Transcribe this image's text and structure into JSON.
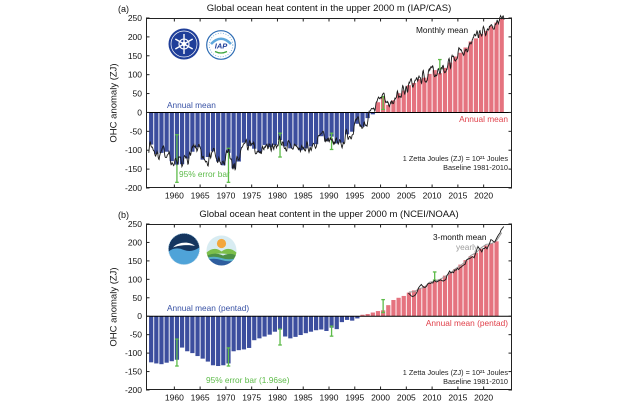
{
  "figure": {
    "background": "#ffffff",
    "description": "Two stacked bar charts of global ocean heat content anomaly (0-2000 m) from IAP/CAS and NCEI/NOAA"
  },
  "chart_data": [
    {
      "panel_label": "(a)",
      "type": "bar",
      "title": "Global ocean heat content in the upper 2000 m (IAP/CAS)",
      "ylabel": "OHC anomaly (ZJ)",
      "ylim": [
        -200,
        250
      ],
      "xlim": [
        1954.5,
        2025.5
      ],
      "y_ticks": [
        250,
        200,
        150,
        100,
        50,
        0,
        -50,
        -100,
        -150,
        -200
      ],
      "x_ticks": [
        1960,
        1965,
        1970,
        1975,
        1980,
        1985,
        1990,
        1995,
        2000,
        2005,
        2010,
        2015,
        2020
      ],
      "grid": false,
      "bar_series": {
        "name": "Annual mean",
        "years": [
          1955,
          1956,
          1957,
          1958,
          1959,
          1960,
          1961,
          1962,
          1963,
          1964,
          1965,
          1966,
          1967,
          1968,
          1969,
          1970,
          1971,
          1972,
          1973,
          1974,
          1975,
          1976,
          1977,
          1978,
          1979,
          1980,
          1981,
          1982,
          1983,
          1984,
          1985,
          1986,
          1987,
          1988,
          1989,
          1990,
          1991,
          1992,
          1993,
          1994,
          1995,
          1996,
          1997,
          1998,
          1999,
          2000,
          2001,
          2002,
          2003,
          2004,
          2005,
          2006,
          2007,
          2008,
          2009,
          2010,
          2011,
          2012,
          2013,
          2014,
          2015,
          2016,
          2017,
          2018,
          2019,
          2020,
          2021,
          2022,
          2023
        ],
        "values": [
          -85,
          -110,
          -107,
          -104,
          -129,
          -138,
          -137,
          -122,
          -104,
          -92,
          -125,
          -118,
          -103,
          -130,
          -140,
          -107,
          -148,
          -130,
          -80,
          -89,
          -96,
          -106,
          -86,
          -92,
          -86,
          -73,
          -90,
          -95,
          -88,
          -100,
          -95,
          -90,
          -84,
          -63,
          -76,
          -64,
          -82,
          -80,
          -58,
          -51,
          -30,
          -38,
          -15,
          -5,
          27,
          42,
          20,
          32,
          51,
          58,
          72,
          78,
          88,
          92,
          102,
          112,
          104,
          118,
          132,
          148,
          158,
          172,
          188,
          196,
          208,
          216,
          228,
          238,
          250
        ]
      },
      "line_series": {
        "name": "Monthly mean",
        "span": [
          1955,
          2024
        ],
        "note": "monthly values fluctuate around the annual means by roughly ±15 ZJ"
      },
      "error_bars": {
        "label": "95% error bar",
        "points": [
          {
            "x": 1960.5,
            "lo": -185,
            "hi": -59
          },
          {
            "x": 1970.5,
            "lo": -185,
            "hi": -95
          },
          {
            "x": 1980.5,
            "lo": -118,
            "hi": -55
          },
          {
            "x": 1990.5,
            "lo": -98,
            "hi": -55
          },
          {
            "x": 2000.5,
            "lo": 8,
            "hi": 42
          },
          {
            "x": 2011.5,
            "lo": 115,
            "hi": 140
          }
        ]
      },
      "annotations": {
        "monthly_mean": "Monthly mean",
        "annual_mean_left": "Annual mean",
        "annual_mean_right": "Annual mean",
        "error_bar": "95% error bar",
        "unit_note": "1 Zetta Joules (ZJ) = 10²¹ Joules",
        "baseline_note": "Baseline 1981-2010"
      },
      "logos": [
        "cas-logo",
        "iap-logo"
      ],
      "colors": {
        "bar_negative": "#3C4E9E",
        "bar_positive": "#E5737F",
        "line": "#1a1a1a",
        "error": "#5DBB49",
        "label_blue": "#3952A5",
        "label_red": "#E0404A",
        "label_green": "#5DBB49"
      }
    },
    {
      "panel_label": "(b)",
      "type": "bar",
      "title": "Global ocean heat content in the upper 2000 m (NCEI/NOAA)",
      "ylabel": "OHC anomaly (ZJ)",
      "ylim": [
        -200,
        250
      ],
      "xlim": [
        1954.5,
        2025.5
      ],
      "y_ticks": [
        250,
        200,
        150,
        100,
        50,
        0,
        -50,
        -100,
        -150,
        -200
      ],
      "x_ticks": [
        1960,
        1965,
        1970,
        1975,
        1980,
        1985,
        1990,
        1995,
        2000,
        2005,
        2010,
        2015,
        2020
      ],
      "grid": false,
      "bar_series": {
        "name": "Annual mean (pentad)",
        "years": [
          1955,
          1956,
          1957,
          1958,
          1959,
          1960,
          1961,
          1962,
          1963,
          1964,
          1965,
          1966,
          1967,
          1968,
          1969,
          1970,
          1971,
          1972,
          1973,
          1974,
          1975,
          1976,
          1977,
          1978,
          1979,
          1980,
          1981,
          1982,
          1983,
          1984,
          1985,
          1986,
          1987,
          1988,
          1989,
          1990,
          1991,
          1992,
          1993,
          1994,
          1995,
          1996,
          1997,
          1998,
          1999,
          2000,
          2001,
          2002,
          2003,
          2004,
          2005,
          2006,
          2007,
          2008,
          2009,
          2010,
          2011,
          2012,
          2013,
          2014,
          2015,
          2016,
          2017,
          2018,
          2019,
          2020,
          2021,
          2022
        ],
        "values": [
          -125,
          -128,
          -130,
          -126,
          -122,
          -118,
          -85,
          -95,
          -100,
          -108,
          -115,
          -123,
          -133,
          -135,
          -133,
          -128,
          -95,
          -92,
          -90,
          -86,
          -65,
          -60,
          -55,
          -50,
          -42,
          -36,
          -55,
          -60,
          -56,
          -51,
          -46,
          -42,
          -38,
          -36,
          -40,
          -31,
          -35,
          -16,
          -10,
          -12,
          -6,
          4,
          6,
          10,
          14,
          16,
          30,
          44,
          50,
          55,
          64,
          70,
          75,
          82,
          90,
          95,
          100,
          110,
          118,
          128,
          140,
          152,
          163,
          172,
          183,
          192,
          198,
          203
        ]
      },
      "line_series": {
        "name": "3-month mean",
        "secondary_name": "yearly",
        "span": [
          2005.4,
          2023.9
        ],
        "end_value": 238,
        "note": "3-month line starts ~2005 and rises above the bars to ~238 ZJ by 2023"
      },
      "error_bars": {
        "label": "95% error bar (1.96se)",
        "points": [
          {
            "x": 1960.5,
            "lo": -135,
            "hi": -62
          },
          {
            "x": 1970.5,
            "lo": -135,
            "hi": -86
          },
          {
            "x": 1980.5,
            "lo": -78,
            "hi": -35
          },
          {
            "x": 1990.5,
            "lo": -54,
            "hi": -27
          },
          {
            "x": 2000.5,
            "lo": 10,
            "hi": 45
          },
          {
            "x": 2010.5,
            "lo": 98,
            "hi": 120
          }
        ]
      },
      "annotations": {
        "three_month_mean": "3-month mean",
        "yearly": "yearly",
        "annual_mean_left": "Annual mean (pentad)",
        "annual_mean_right": "Annual mean (pentad)",
        "error_bar": "95% error bar (1.96se)",
        "unit_note": "1 Zetta Joules (ZJ) = 10²¹ Joules",
        "baseline_note": "Baseline 1981-2010"
      },
      "logos": [
        "noaa-logo",
        "ncei-logo"
      ],
      "colors": {
        "bar_negative": "#3C4E9E",
        "bar_positive": "#E5737F",
        "line": "#1a1a1a",
        "yearly_gray": "#9b9b9b",
        "error": "#5DBB49",
        "label_blue": "#3952A5",
        "label_red": "#E0404A",
        "label_green": "#5DBB49"
      }
    }
  ]
}
